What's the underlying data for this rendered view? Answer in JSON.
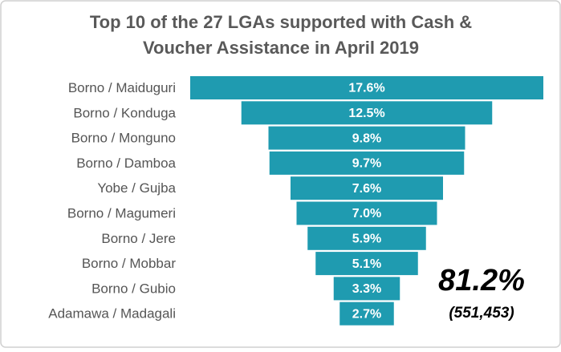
{
  "chart_data": {
    "type": "funnel",
    "title": [
      "Top 10 of the 27 LGAs supported with Cash &",
      "Voucher Assistance in April 2019"
    ],
    "categories": [
      "Borno / Maiduguri",
      "Borno / Konduga",
      "Borno / Monguno",
      "Borno / Damboa",
      "Yobe / Gujba",
      "Borno / Magumeri",
      "Borno / Jere",
      "Borno / Mobbar",
      "Borno / Gubio",
      "Adamawa / Madagali"
    ],
    "values": [
      17.6,
      12.5,
      9.8,
      9.7,
      7.6,
      7.0,
      5.9,
      5.1,
      3.3,
      2.7
    ],
    "value_labels": [
      "17.6%",
      "12.5%",
      "9.8%",
      "9.7%",
      "7.6%",
      "7.0%",
      "5.9%",
      "5.1%",
      "3.3%",
      "2.7%"
    ],
    "color": "#1f9bb0",
    "annotations": [
      "81.2%",
      "(551,453)"
    ]
  }
}
